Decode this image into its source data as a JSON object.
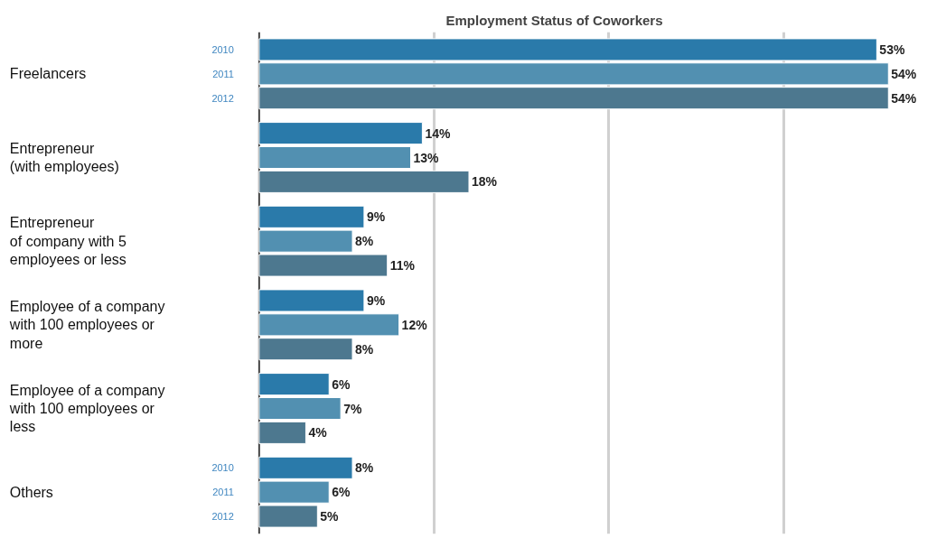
{
  "chart_data": {
    "type": "bar",
    "orientation": "horizontal",
    "title": "Employment Status of Coworkers",
    "categories": [
      "Freelancers",
      "Entrepreneur\n(with employees)",
      "Entrepreneur\nof company with 5\nemployees or less",
      "Employee of a company\nwith 100 employees or\nmore",
      "Employee of a company\nwith 100 employees or\nless",
      "Others"
    ],
    "series": [
      {
        "name": "2010",
        "color": "#2a7aaa",
        "values": [
          53,
          14,
          9,
          9,
          6,
          8
        ],
        "value_labels": [
          "53%",
          "14%",
          "9%",
          "9%",
          "6%",
          "8%"
        ]
      },
      {
        "name": "2011",
        "color": "#5290b1",
        "values": [
          54,
          13,
          8,
          12,
          7,
          6
        ],
        "value_labels": [
          "54%",
          "13%",
          "8%",
          "12%",
          "7%",
          "6%"
        ]
      },
      {
        "name": "2012",
        "color": "#4d788f",
        "values": [
          54,
          18,
          11,
          8,
          4,
          5
        ],
        "value_labels": [
          "54%",
          "18%",
          "11%",
          "8%",
          "4%",
          "5%"
        ]
      }
    ],
    "xticks": [
      {
        "value": 15,
        "label": null
      },
      {
        "value": 30,
        "label": null
      },
      {
        "value": 45,
        "label": null
      }
    ],
    "grid": "x",
    "tick_labels": "y"
  }
}
